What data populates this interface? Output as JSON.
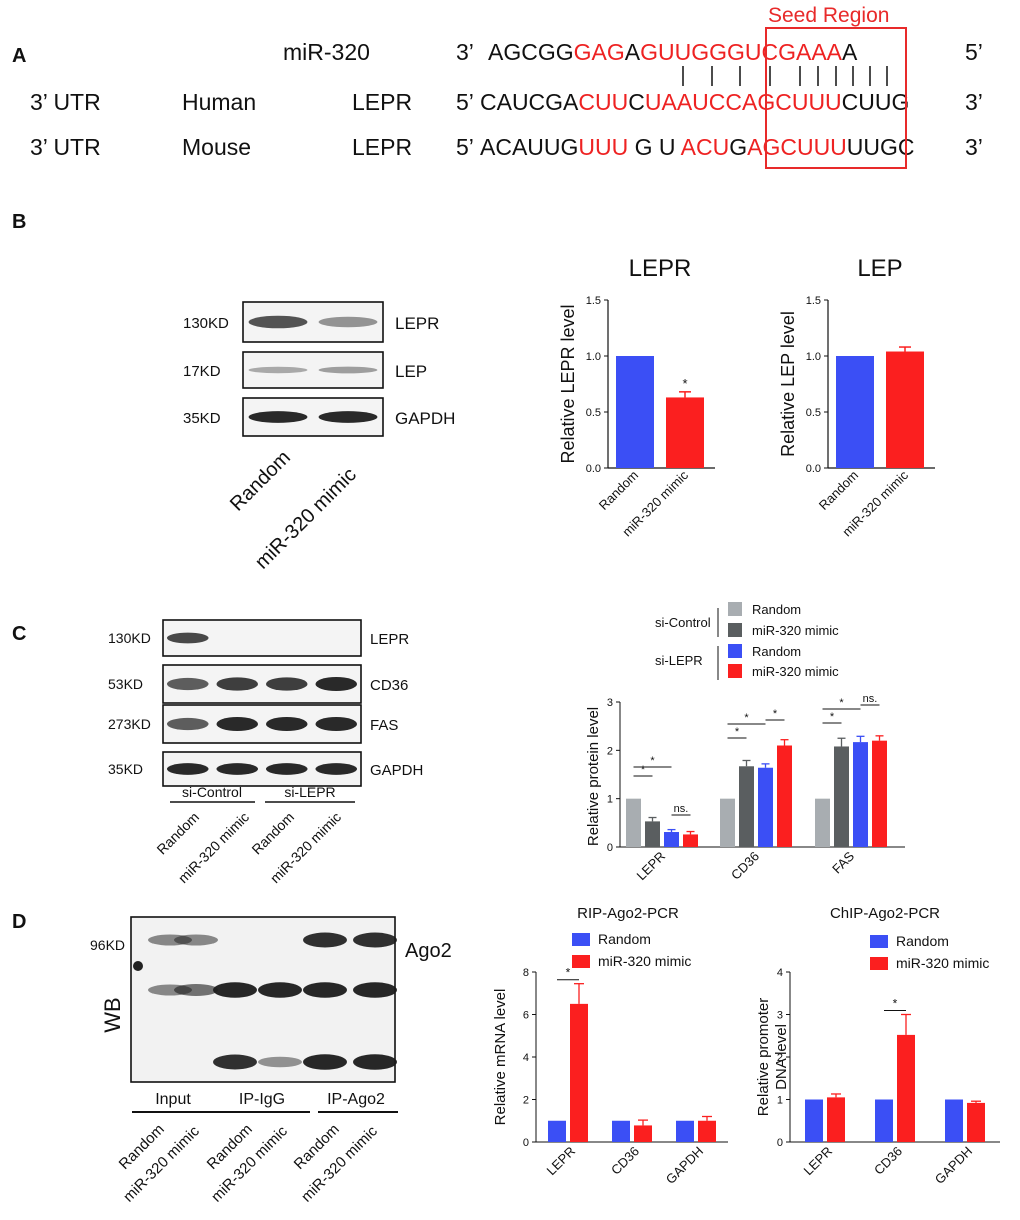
{
  "panel_letters": {
    "a": "A",
    "b": "B",
    "c": "C",
    "d": "D"
  },
  "panel_a": {
    "seed_label": "Seed Region",
    "mir_name": "miR-320",
    "mir_prime_left": "3’",
    "mir_prime_right": "5’",
    "mir_seq": [
      {
        "t": "AGCGG",
        "red": false
      },
      {
        "t": "GAG",
        "red": true
      },
      {
        "t": "A",
        "red": false
      },
      {
        "t": "GUUGG",
        "red": true
      },
      {
        "t": "GUCGAAA",
        "red": true
      },
      {
        "t": "A",
        "red": false
      }
    ],
    "bonds": "|   |   |   |    |  |  |  |  |  |  |",
    "human": {
      "utr": "3’ UTR",
      "species": "Human",
      "gene": "LEPR",
      "prime_left": "5’",
      "prime_right": "3’",
      "seq": [
        {
          "t": "CAUCGA",
          "red": false
        },
        {
          "t": "CUU",
          "red": true
        },
        {
          "t": "C",
          "red": false
        },
        {
          "t": "UAAUC",
          "red": true
        },
        {
          "t": "CAGCUUU",
          "red": true
        },
        {
          "t": "CUUG",
          "red": false
        }
      ]
    },
    "mouse": {
      "utr": "3’ UTR",
      "species": "Mouse",
      "gene": "LEPR",
      "prime_left": "5’",
      "prime_right": "3’",
      "seq": [
        {
          "t": "ACAUUG",
          "red": false
        },
        {
          "t": "UUU",
          "red": true
        },
        {
          "t": " G U ",
          "red": false
        },
        {
          "t": "A",
          "red": true
        },
        {
          "t": "CU",
          "red": true
        },
        {
          "t": "G",
          "red": false
        },
        {
          "t": "AGCUUU",
          "red": true
        },
        {
          "t": "UUGC",
          "red": false
        }
      ]
    }
  },
  "panel_b": {
    "blot": {
      "bands": [
        {
          "mw": "130KD",
          "name": "LEPR"
        },
        {
          "mw": "17KD",
          "name": "LEP"
        },
        {
          "mw": "35KD",
          "name": "GAPDH"
        }
      ],
      "lanes": [
        "Random",
        "miR-320 mimic"
      ]
    },
    "charts": [
      {
        "title": "LEPR",
        "ylabel": "Relative LEPR level",
        "ylim": [
          0,
          1.5
        ],
        "ticks": [
          "0.0",
          "0.5",
          "1.0",
          "1.5"
        ],
        "categories": [
          "Random",
          "miR-320 mimic"
        ],
        "values": [
          1.0,
          0.63
        ],
        "errors": [
          0,
          0.05
        ],
        "colors": [
          "#3b4ff5",
          "#fb1f1f"
        ],
        "star": "*"
      },
      {
        "title": "LEP",
        "ylabel": "Relative LEP level",
        "ylim": [
          0,
          1.5
        ],
        "ticks": [
          "0.0",
          "0.5",
          "1.0",
          "1.5"
        ],
        "categories": [
          "Random",
          "miR-320 mimic"
        ],
        "values": [
          1.0,
          1.04
        ],
        "errors": [
          0,
          0.04
        ],
        "colors": [
          "#3b4ff5",
          "#fb1f1f"
        ],
        "star": ""
      }
    ]
  },
  "panel_c": {
    "blot": {
      "bands": [
        {
          "mw": "130KD",
          "name": "LEPR"
        },
        {
          "mw": "53KD",
          "name": "CD36"
        },
        {
          "mw": "273KD",
          "name": "FAS"
        },
        {
          "mw": "35KD",
          "name": "GAPDH"
        }
      ],
      "groups": [
        "si-Control",
        "si-LEPR"
      ],
      "lanes": [
        "Random",
        "miR-320 mimic",
        "Random",
        "miR-320 mimic"
      ]
    },
    "legend": {
      "groups": [
        {
          "name": "si-Control",
          "items": [
            {
              "label": "Random",
              "color": "#a8adb1"
            },
            {
              "label": "miR-320 mimic",
              "color": "#5a5e60"
            }
          ]
        },
        {
          "name": "si-LEPR",
          "items": [
            {
              "label": "Random",
              "color": "#3b4ff5"
            },
            {
              "label": "miR-320 mimic",
              "color": "#fb1f1f"
            }
          ]
        }
      ]
    },
    "chart_data": {
      "type": "bar",
      "ylabel": "Relative protein level",
      "ylim": [
        0,
        3
      ],
      "ticks": [
        "0",
        "1",
        "2",
        "3"
      ],
      "categories": [
        "LEPR",
        "CD36",
        "FAS"
      ],
      "series": [
        {
          "name": "Random",
          "values": [
            1.0,
            1.0,
            1.0
          ],
          "errors": [
            0,
            0,
            0
          ]
        },
        {
          "name": "miR-320 mimic",
          "values": [
            0.53,
            1.67,
            2.08
          ],
          "errors": [
            0.08,
            0.12,
            0.17
          ]
        },
        {
          "name": "Random",
          "values": [
            0.31,
            1.64,
            2.17
          ],
          "errors": [
            0.05,
            0.08,
            0.12
          ]
        },
        {
          "name": "miR-320 mimic",
          "values": [
            0.26,
            2.1,
            2.2
          ],
          "errors": [
            0.06,
            0.12,
            0.1
          ]
        }
      ],
      "annotations": [
        "*",
        "*",
        "ns.",
        "*",
        "*",
        "*",
        "*",
        "*",
        "ns."
      ]
    }
  },
  "panel_d": {
    "blot": {
      "axis_label": "WB",
      "mw": "96KD",
      "band": "Ago2",
      "groups": [
        "Input",
        "IP-IgG",
        "IP-Ago2"
      ],
      "lanes": [
        "Random",
        "miR-320 mimic",
        "Random",
        "miR-320 mimic",
        "Random",
        "miR-320 mimic"
      ]
    },
    "charts": [
      {
        "title": "RIP-Ago2-PCR",
        "ylabel": "Relative mRNA level",
        "ylim": [
          0,
          8
        ],
        "ticks": [
          "0",
          "2",
          "4",
          "6",
          "8"
        ],
        "categories": [
          "LEPR",
          "CD36",
          "GAPDH"
        ],
        "series": [
          {
            "name": "Random",
            "values": [
              1,
              1,
              1
            ],
            "errors": [
              0,
              0,
              0
            ]
          },
          {
            "name": "miR-320 mimic",
            "values": [
              6.5,
              0.78,
              1.0
            ],
            "errors": [
              0.95,
              0.25,
              0.2
            ]
          }
        ],
        "star": "*"
      },
      {
        "title": "ChIP-Ago2-PCR",
        "ylabel": "Relative promoter DNA level",
        "ylim": [
          0,
          4
        ],
        "ticks": [
          "0",
          "1",
          "2",
          "3",
          "4"
        ],
        "categories": [
          "LEPR",
          "CD36",
          "GAPDH"
        ],
        "series": [
          {
            "name": "Random",
            "values": [
              1,
              1,
              1
            ],
            "errors": [
              0,
              0,
              0
            ]
          },
          {
            "name": "miR-320 mimic",
            "values": [
              1.05,
              2.52,
              0.92
            ],
            "errors": [
              0.08,
              0.48,
              0.04
            ]
          }
        ],
        "star": "*"
      }
    ],
    "legend": [
      {
        "label": "Random",
        "color": "#3b4ff5"
      },
      {
        "label": "miR-320 mimic",
        "color": "#fb1f1f"
      }
    ]
  }
}
